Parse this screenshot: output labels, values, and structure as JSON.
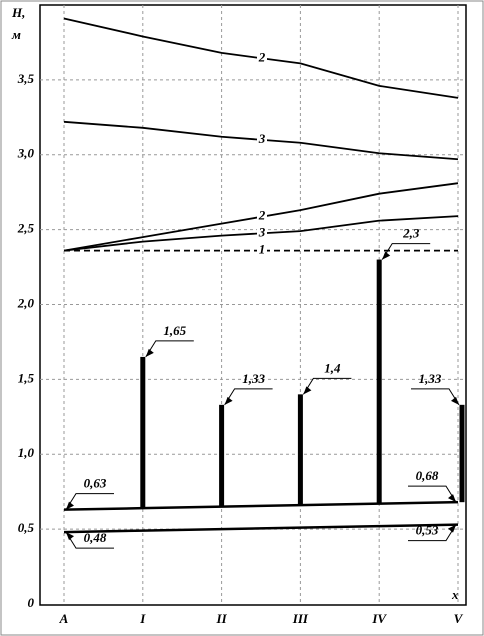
{
  "chart_data": {
    "type": "line",
    "y_label_lines": [
      "H,",
      "м"
    ],
    "x_label": "x",
    "categories": [
      "A",
      "I",
      "II",
      "III",
      "IV",
      "V"
    ],
    "ylim": [
      0,
      4.0
    ],
    "yticks": [
      0,
      {
        "value": 0.5,
        "label": "0,5"
      },
      {
        "value": 1.0,
        "label": "1,0"
      },
      {
        "value": 1.5,
        "label": "1,5"
      },
      {
        "value": 2.0,
        "label": "2,0"
      },
      {
        "value": 2.5,
        "label": "2,5"
      },
      {
        "value": 3.0,
        "label": "3,0"
      },
      {
        "value": 3.5,
        "label": "3,5"
      }
    ],
    "grid": true,
    "series": [
      {
        "name": "2",
        "color": "#000000",
        "values": [
          3.91,
          3.79,
          3.68,
          3.61,
          3.46,
          3.38
        ]
      },
      {
        "name": "3",
        "color": "#000000",
        "values": [
          3.22,
          3.18,
          3.12,
          3.08,
          3.01,
          2.97
        ]
      },
      {
        "name": "2",
        "color": "#000000",
        "values": [
          2.36,
          2.45,
          2.54,
          2.63,
          2.74,
          2.81
        ]
      },
      {
        "name": "3",
        "color": "#000000",
        "values": [
          2.36,
          2.42,
          2.46,
          2.49,
          2.56,
          2.59
        ]
      },
      {
        "name": "1",
        "color": "#000000",
        "dashed": true,
        "values": [
          2.36,
          2.36,
          2.36,
          2.36,
          2.36,
          2.36
        ]
      },
      {
        "color": "#000000",
        "values": [
          0.63,
          0.64,
          0.65,
          0.66,
          0.67,
          0.68
        ],
        "value_labels": [
          "0,63",
          null,
          null,
          null,
          null,
          "0,68"
        ]
      },
      {
        "color": "#000000",
        "values": [
          0.48,
          0.49,
          0.5,
          0.51,
          0.52,
          0.53
        ],
        "value_labels": [
          "0,48",
          null,
          null,
          null,
          null,
          "0,53"
        ]
      }
    ],
    "bars": {
      "color": "#000000",
      "values": [
        null,
        1.65,
        1.33,
        1.4,
        2.3,
        1.33
      ],
      "value_labels": [
        null,
        "1,65",
        "1,33",
        "1,4",
        "2,3",
        "1,33"
      ]
    }
  }
}
